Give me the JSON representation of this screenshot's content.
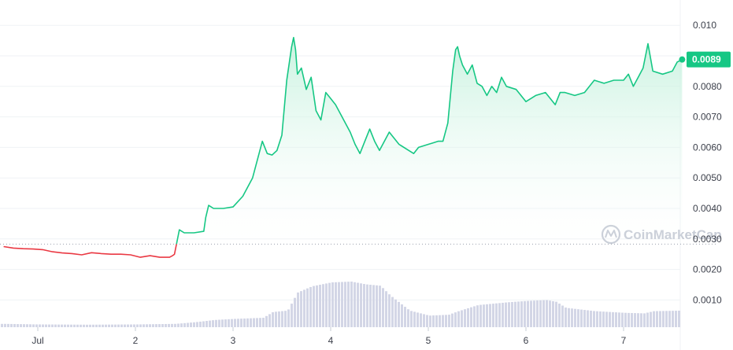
{
  "chart_data": {
    "type": "line",
    "title": "",
    "xlabel": "",
    "ylabel": "",
    "x_tick_labels": [
      {
        "label": "Jul",
        "day": 1
      },
      {
        "label": "2",
        "day": 2
      },
      {
        "label": "3",
        "day": 3
      },
      {
        "label": "4",
        "day": 4
      },
      {
        "label": "5",
        "day": 5
      },
      {
        "label": "6",
        "day": 6
      },
      {
        "label": "7",
        "day": 7
      }
    ],
    "y_ticks": [
      "0.0010",
      "0.0020",
      "0.0030",
      "0.0040",
      "0.0050",
      "0.0060",
      "0.0070",
      "0.0080",
      "0.010"
    ],
    "y_tick_values": [
      0.001,
      0.002,
      0.003,
      0.004,
      0.005,
      0.006,
      0.007,
      0.008,
      0.01
    ],
    "ylim": [
      0.0,
      0.0105
    ],
    "xlim": [
      0.65,
      7.62
    ],
    "grid": "horizontal",
    "reference_price": 0.00283,
    "current_price_label": "0.0089",
    "current_price": 0.00888,
    "colors": {
      "above": "#16c784",
      "below": "#ea3943",
      "area_top": "#bff0da",
      "volume": "#d3d6e6",
      "price_tag": "#16c784",
      "grid": "#eff2f5"
    },
    "watermark": "CoinMarketCap",
    "series": [
      {
        "x": [
          0.65,
          0.75,
          0.85,
          0.95,
          1.05,
          1.15,
          1.25,
          1.35,
          1.45,
          1.55,
          1.65,
          1.75,
          1.85,
          1.95,
          2.05,
          2.15,
          2.25,
          2.35,
          2.38,
          2.4,
          2.45,
          2.5,
          2.6,
          2.7,
          2.72,
          2.75,
          2.8,
          2.9,
          3.0,
          3.1,
          3.2,
          3.3,
          3.35,
          3.4,
          3.45,
          3.5,
          3.55,
          3.6,
          3.62,
          3.64,
          3.66,
          3.7,
          3.75,
          3.8,
          3.85,
          3.9,
          3.95,
          4.0,
          4.05,
          4.1,
          4.15,
          4.2,
          4.25,
          4.3,
          4.35,
          4.4,
          4.45,
          4.5,
          4.6,
          4.7,
          4.8,
          4.85,
          4.9,
          5.0,
          5.05,
          5.1,
          5.15,
          5.2,
          5.25,
          5.28,
          5.3,
          5.32,
          5.35,
          5.4,
          5.45,
          5.5,
          5.55,
          5.6,
          5.65,
          5.7,
          5.75,
          5.8,
          5.9,
          6.0,
          6.1,
          6.2,
          6.3,
          6.35,
          6.4,
          6.5,
          6.6,
          6.7,
          6.8,
          6.9,
          7.0,
          7.05,
          7.1,
          7.15,
          7.2,
          7.25,
          7.3,
          7.4,
          7.5,
          7.55,
          7.6
        ],
        "y": [
          0.00275,
          0.0027,
          0.00268,
          0.00267,
          0.00265,
          0.00258,
          0.00254,
          0.00252,
          0.00248,
          0.00255,
          0.00252,
          0.0025,
          0.0025,
          0.00248,
          0.0024,
          0.00245,
          0.0024,
          0.0024,
          0.00245,
          0.0025,
          0.0033,
          0.0032,
          0.0032,
          0.00325,
          0.0037,
          0.0041,
          0.004,
          0.004,
          0.00405,
          0.0044,
          0.005,
          0.0062,
          0.0058,
          0.00575,
          0.0059,
          0.0064,
          0.0082,
          0.0093,
          0.0096,
          0.0092,
          0.0084,
          0.0086,
          0.0079,
          0.0083,
          0.0072,
          0.0069,
          0.0078,
          0.0076,
          0.0074,
          0.0071,
          0.0068,
          0.0065,
          0.0061,
          0.0058,
          0.0062,
          0.0066,
          0.0062,
          0.0059,
          0.0065,
          0.0061,
          0.0059,
          0.0058,
          0.006,
          0.0061,
          0.00615,
          0.0062,
          0.0062,
          0.0068,
          0.0085,
          0.0092,
          0.0093,
          0.009,
          0.0087,
          0.0084,
          0.0087,
          0.0081,
          0.008,
          0.0077,
          0.008,
          0.0078,
          0.0083,
          0.008,
          0.0079,
          0.0075,
          0.0077,
          0.0078,
          0.0074,
          0.0078,
          0.0078,
          0.0077,
          0.0078,
          0.0082,
          0.0081,
          0.0082,
          0.0082,
          0.0084,
          0.008,
          0.0083,
          0.0086,
          0.0094,
          0.0085,
          0.0084,
          0.0085,
          0.0088,
          0.00888
        ]
      }
    ],
    "volume": {
      "x": [
        0.65,
        1.0,
        1.5,
        2.0,
        2.4,
        2.6,
        2.8,
        3.0,
        3.3,
        3.4,
        3.55,
        3.65,
        3.8,
        4.0,
        4.2,
        4.35,
        4.5,
        4.6,
        4.8,
        5.0,
        5.2,
        5.3,
        5.5,
        5.8,
        6.0,
        6.2,
        6.3,
        6.4,
        6.7,
        7.0,
        7.2,
        7.3,
        7.6
      ],
      "values": [
        0.00012,
        0.0001,
        9e-05,
        0.0001,
        0.00012,
        0.00018,
        0.00026,
        0.0003,
        0.00034,
        0.00055,
        0.0006,
        0.00125,
        0.00148,
        0.00162,
        0.00165,
        0.00155,
        0.0015,
        0.00115,
        0.0006,
        0.00042,
        0.00045,
        0.00058,
        0.0008,
        0.0009,
        0.00095,
        0.00098,
        0.00092,
        0.0007,
        0.00058,
        0.00052,
        0.0005,
        0.00058,
        0.0006
      ]
    }
  }
}
